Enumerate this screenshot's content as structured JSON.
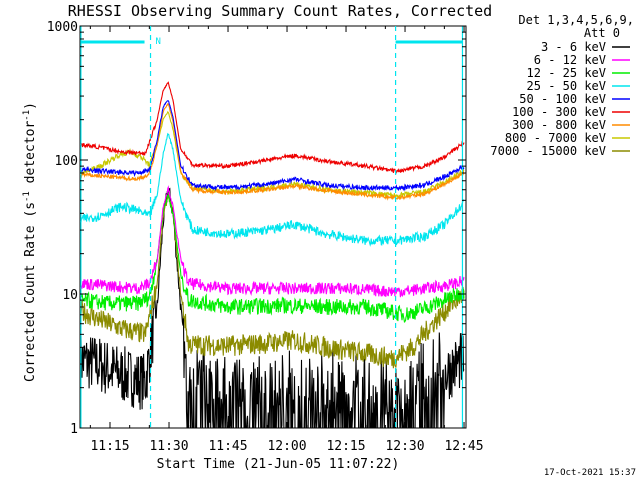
{
  "chart_data": {
    "type": "line",
    "title": "RHESSI Observing Summary Count Rates, Corrected",
    "xlabel": "Start Time (21-Jun-05 11:07:22)",
    "ylabel": "Corrected Count Rate (s",
    "ylabel_sup1": "-1",
    "ylabel_mid": " detector",
    "ylabel_sup2": "-1",
    "ylabel_end": ")",
    "x_start_minutes": 7.37,
    "x_end_minutes": 105.5,
    "yscale": "log",
    "ylim": [
      1,
      1000
    ],
    "x_ticks": [
      {
        "minutes": 15,
        "label": "11:15"
      },
      {
        "minutes": 30,
        "label": "11:30"
      },
      {
        "minutes": 45,
        "label": "11:45"
      },
      {
        "minutes": 60,
        "label": "12:00"
      },
      {
        "minutes": 75,
        "label": "12:15"
      },
      {
        "minutes": 90,
        "label": "12:30"
      },
      {
        "minutes": 105,
        "label": "12:45"
      }
    ],
    "y_ticks": [
      {
        "value": 1,
        "label": "1"
      },
      {
        "value": 10,
        "label": "10"
      },
      {
        "value": 100,
        "label": "100"
      },
      {
        "value": 1000,
        "label": "1000"
      }
    ],
    "legend_header": [
      "Det 1,3,4,5,6,9,",
      "Att 0"
    ],
    "legend_position": "right",
    "footer_date": "17-Oct-2021 15:37",
    "night_marker_label": "N",
    "night_boundaries_minutes": [
      7.6,
      25.3,
      87.6,
      104.6
    ],
    "series": [
      {
        "name": "3 - 6 keV",
        "color": "#000000",
        "points": [
          [
            7.5,
            3.2
          ],
          [
            12,
            3.0
          ],
          [
            18,
            2.5
          ],
          [
            24,
            2.2
          ],
          [
            27,
            8
          ],
          [
            28.5,
            35
          ],
          [
            29.8,
            62
          ],
          [
            31,
            40
          ],
          [
            33,
            8
          ],
          [
            34.5,
            2
          ],
          [
            40,
            1.6
          ],
          [
            50,
            1.5
          ],
          [
            60,
            1.5
          ],
          [
            70,
            1.5
          ],
          [
            80,
            1.5
          ],
          [
            85,
            1.4
          ],
          [
            90,
            1.5
          ],
          [
            95,
            1.8
          ],
          [
            100,
            2.5
          ],
          [
            105,
            3.3
          ]
        ]
      },
      {
        "name": "6 - 12 keV",
        "color": "#ff00ff",
        "points": [
          [
            7.5,
            12
          ],
          [
            15,
            11.5
          ],
          [
            22,
            11
          ],
          [
            25,
            12
          ],
          [
            27,
            18
          ],
          [
            28.5,
            45
          ],
          [
            29.8,
            62
          ],
          [
            31,
            45
          ],
          [
            33,
            18
          ],
          [
            35,
            12
          ],
          [
            45,
            11
          ],
          [
            60,
            11
          ],
          [
            75,
            11
          ],
          [
            85,
            10.5
          ],
          [
            90,
            10.5
          ],
          [
            95,
            11
          ],
          [
            100,
            11.5
          ],
          [
            105,
            12.5
          ]
        ]
      },
      {
        "name": "12 - 25 keV",
        "color": "#00ee00",
        "points": [
          [
            7.5,
            9
          ],
          [
            15,
            8.5
          ],
          [
            22,
            8.5
          ],
          [
            25,
            9.5
          ],
          [
            27,
            18
          ],
          [
            28.5,
            42
          ],
          [
            29.8,
            55
          ],
          [
            31,
            40
          ],
          [
            33,
            14
          ],
          [
            35,
            9
          ],
          [
            45,
            8
          ],
          [
            60,
            8.2
          ],
          [
            70,
            8
          ],
          [
            80,
            8
          ],
          [
            85,
            7.5
          ],
          [
            90,
            7
          ],
          [
            95,
            7.8
          ],
          [
            100,
            9
          ],
          [
            105,
            10.5
          ]
        ]
      },
      {
        "name": "25 - 50 keV",
        "color": "#00e5ee",
        "points": [
          [
            7.5,
            36
          ],
          [
            12,
            38
          ],
          [
            18,
            45
          ],
          [
            22,
            42
          ],
          [
            25,
            38
          ],
          [
            27,
            55
          ],
          [
            28.5,
            110
          ],
          [
            29.8,
            160
          ],
          [
            31,
            120
          ],
          [
            33,
            50
          ],
          [
            36,
            30
          ],
          [
            45,
            28
          ],
          [
            55,
            30
          ],
          [
            62,
            33
          ],
          [
            70,
            28
          ],
          [
            80,
            25
          ],
          [
            88,
            25
          ],
          [
            95,
            27
          ],
          [
            100,
            33
          ],
          [
            105,
            48
          ]
        ]
      },
      {
        "name": "50 - 100 keV",
        "color": "#0000ff",
        "points": [
          [
            7.5,
            85
          ],
          [
            15,
            82
          ],
          [
            22,
            80
          ],
          [
            25,
            85
          ],
          [
            27,
            140
          ],
          [
            28.5,
            250
          ],
          [
            29.8,
            280
          ],
          [
            31,
            210
          ],
          [
            33,
            90
          ],
          [
            36,
            65
          ],
          [
            45,
            62
          ],
          [
            55,
            66
          ],
          [
            62,
            72
          ],
          [
            70,
            65
          ],
          [
            80,
            62
          ],
          [
            88,
            62
          ],
          [
            95,
            65
          ],
          [
            100,
            75
          ],
          [
            105,
            90
          ]
        ]
      },
      {
        "name": "100 - 300 keV",
        "color": "#ee0000",
        "points": [
          [
            7.5,
            130
          ],
          [
            12,
            125
          ],
          [
            18,
            115
          ],
          [
            24,
            112
          ],
          [
            27,
            200
          ],
          [
            28.5,
            330
          ],
          [
            29.8,
            380
          ],
          [
            31,
            280
          ],
          [
            33,
            120
          ],
          [
            36,
            92
          ],
          [
            45,
            90
          ],
          [
            55,
            100
          ],
          [
            62,
            108
          ],
          [
            70,
            98
          ],
          [
            80,
            90
          ],
          [
            88,
            82
          ],
          [
            95,
            90
          ],
          [
            100,
            105
          ],
          [
            105,
            135
          ]
        ]
      },
      {
        "name": "300 - 800 keV",
        "color": "#ff8c00",
        "points": [
          [
            7.5,
            78
          ],
          [
            15,
            75
          ],
          [
            22,
            72
          ],
          [
            25,
            78
          ],
          [
            27,
            130
          ],
          [
            28.5,
            230
          ],
          [
            29.8,
            265
          ],
          [
            31,
            195
          ],
          [
            33,
            82
          ],
          [
            36,
            60
          ],
          [
            45,
            57
          ],
          [
            55,
            60
          ],
          [
            62,
            64
          ],
          [
            70,
            59
          ],
          [
            80,
            55
          ],
          [
            88,
            52
          ],
          [
            95,
            56
          ],
          [
            100,
            66
          ],
          [
            105,
            80
          ]
        ]
      },
      {
        "name": "800 - 7000 keV",
        "color": "#c8c800",
        "points": [
          [
            7.5,
            80
          ],
          [
            12,
            88
          ],
          [
            17,
            108
          ],
          [
            20,
            115
          ],
          [
            23,
            105
          ],
          [
            25,
            92
          ],
          [
            27,
            130
          ],
          [
            28.5,
            200
          ],
          [
            29.8,
            230
          ],
          [
            31,
            170
          ],
          [
            33,
            80
          ],
          [
            36,
            62
          ],
          [
            45,
            58
          ],
          [
            55,
            62
          ],
          [
            62,
            66
          ],
          [
            70,
            60
          ],
          [
            80,
            57
          ],
          [
            88,
            54
          ],
          [
            95,
            58
          ],
          [
            100,
            68
          ],
          [
            105,
            82
          ]
        ]
      },
      {
        "name": "7000 - 15000 keV",
        "color": "#8b8b00",
        "points": [
          [
            7.5,
            7.5
          ],
          [
            12,
            6.5
          ],
          [
            18,
            5.5
          ],
          [
            24,
            5
          ],
          [
            27,
            12
          ],
          [
            28.5,
            38
          ],
          [
            29.8,
            55
          ],
          [
            31,
            40
          ],
          [
            33,
            10
          ],
          [
            35,
            4.2
          ],
          [
            45,
            4.1
          ],
          [
            55,
            4.3
          ],
          [
            62,
            4.5
          ],
          [
            70,
            4
          ],
          [
            80,
            3.6
          ],
          [
            87,
            3.3
          ],
          [
            92,
            4
          ],
          [
            97,
            6
          ],
          [
            102,
            8.5
          ],
          [
            105,
            10
          ]
        ]
      }
    ]
  }
}
